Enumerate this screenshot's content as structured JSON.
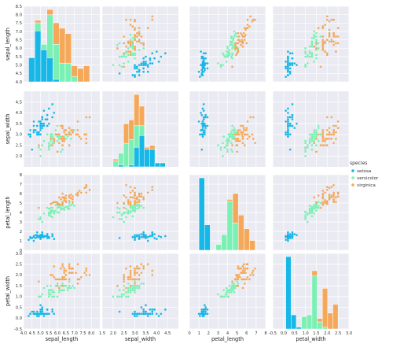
{
  "chart_data": {
    "type": "scatter",
    "subtype": "pairplot",
    "variables": [
      "sepal_length",
      "sepal_width",
      "petal_length",
      "petal_width"
    ],
    "axes": {
      "sepal_length": {
        "label": "sepal_length",
        "lim": [
          4.0,
          8.5
        ],
        "ticks": [
          4.0,
          4.5,
          5.0,
          5.5,
          6.0,
          6.5,
          7.0,
          7.5,
          8.0,
          8.5
        ],
        "xticks": [
          4.0,
          4.5,
          5.0,
          5.5,
          6.0,
          6.5,
          7.0,
          7.5,
          8.0
        ]
      },
      "sepal_width": {
        "label": "sepal_width",
        "lim": [
          1.5,
          5.0
        ],
        "ticks": [
          2.0,
          2.5,
          3.0,
          3.5,
          4.0,
          4.5
        ],
        "xticks": [
          1.5,
          2.0,
          2.5,
          3.0,
          3.5,
          4.0,
          4.5
        ]
      },
      "petal_length": {
        "label": "petal_length",
        "lim": [
          0,
          8
        ],
        "ticks": [
          0,
          1,
          2,
          3,
          4,
          5,
          6,
          7,
          8
        ],
        "xticks": [
          0,
          1,
          2,
          3,
          4,
          5,
          6,
          7,
          8
        ]
      },
      "petal_width": {
        "label": "petal_width",
        "lim": [
          -0.5,
          3.0
        ],
        "ticks": [
          -0.5,
          0.0,
          0.5,
          1.0,
          1.5,
          2.0,
          2.5,
          3.0
        ],
        "xticks": [
          -0.5,
          0.0,
          0.5,
          1.0,
          1.5,
          2.0,
          2.5,
          3.0
        ]
      }
    },
    "series": [
      {
        "name": "setosa",
        "color": "#17b7e8",
        "points": [
          [
            5.1,
            3.5,
            1.4,
            0.2
          ],
          [
            4.9,
            3.0,
            1.4,
            0.2
          ],
          [
            4.7,
            3.2,
            1.3,
            0.2
          ],
          [
            4.6,
            3.1,
            1.5,
            0.2
          ],
          [
            5.0,
            3.6,
            1.4,
            0.2
          ],
          [
            5.4,
            3.9,
            1.7,
            0.4
          ],
          [
            4.6,
            3.4,
            1.4,
            0.3
          ],
          [
            5.0,
            3.4,
            1.5,
            0.2
          ],
          [
            4.4,
            2.9,
            1.4,
            0.2
          ],
          [
            4.9,
            3.1,
            1.5,
            0.1
          ],
          [
            5.4,
            3.7,
            1.5,
            0.2
          ],
          [
            4.8,
            3.4,
            1.6,
            0.2
          ],
          [
            4.8,
            3.0,
            1.4,
            0.1
          ],
          [
            4.3,
            3.0,
            1.1,
            0.1
          ],
          [
            5.8,
            4.0,
            1.2,
            0.2
          ],
          [
            5.7,
            4.4,
            1.5,
            0.4
          ],
          [
            5.4,
            3.9,
            1.3,
            0.4
          ],
          [
            5.1,
            3.5,
            1.4,
            0.3
          ],
          [
            5.7,
            3.8,
            1.7,
            0.3
          ],
          [
            5.1,
            3.8,
            1.5,
            0.3
          ],
          [
            5.4,
            3.4,
            1.7,
            0.2
          ],
          [
            5.1,
            3.7,
            1.5,
            0.4
          ],
          [
            4.6,
            3.6,
            1.0,
            0.2
          ],
          [
            5.1,
            3.3,
            1.7,
            0.5
          ],
          [
            4.8,
            3.4,
            1.9,
            0.2
          ],
          [
            5.0,
            3.0,
            1.6,
            0.2
          ],
          [
            5.0,
            3.4,
            1.6,
            0.4
          ],
          [
            5.2,
            3.5,
            1.5,
            0.2
          ],
          [
            5.2,
            3.4,
            1.4,
            0.2
          ],
          [
            4.7,
            3.2,
            1.6,
            0.2
          ],
          [
            4.8,
            3.1,
            1.6,
            0.2
          ],
          [
            5.4,
            3.4,
            1.5,
            0.4
          ],
          [
            5.2,
            4.1,
            1.5,
            0.1
          ],
          [
            5.5,
            4.2,
            1.4,
            0.2
          ],
          [
            4.9,
            3.1,
            1.5,
            0.2
          ],
          [
            5.0,
            3.2,
            1.2,
            0.2
          ],
          [
            5.5,
            3.5,
            1.3,
            0.2
          ],
          [
            4.9,
            3.6,
            1.4,
            0.1
          ],
          [
            4.4,
            3.0,
            1.3,
            0.2
          ],
          [
            5.1,
            3.4,
            1.5,
            0.2
          ],
          [
            5.0,
            3.5,
            1.3,
            0.3
          ],
          [
            4.5,
            2.3,
            1.3,
            0.3
          ],
          [
            4.4,
            3.2,
            1.3,
            0.2
          ],
          [
            5.0,
            3.5,
            1.6,
            0.6
          ],
          [
            5.1,
            3.8,
            1.9,
            0.4
          ],
          [
            4.8,
            3.0,
            1.4,
            0.3
          ],
          [
            5.1,
            3.8,
            1.6,
            0.2
          ],
          [
            4.6,
            3.2,
            1.4,
            0.2
          ],
          [
            5.3,
            3.7,
            1.5,
            0.2
          ],
          [
            5.0,
            3.3,
            1.4,
            0.2
          ]
        ]
      },
      {
        "name": "versicolor",
        "color": "#7cf0b4",
        "points": [
          [
            7.0,
            3.2,
            4.7,
            1.4
          ],
          [
            6.4,
            3.2,
            4.5,
            1.5
          ],
          [
            6.9,
            3.1,
            4.9,
            1.5
          ],
          [
            5.5,
            2.3,
            4.0,
            1.3
          ],
          [
            6.5,
            2.8,
            4.6,
            1.5
          ],
          [
            5.7,
            2.8,
            4.5,
            1.3
          ],
          [
            6.3,
            3.3,
            4.7,
            1.6
          ],
          [
            4.9,
            2.4,
            3.3,
            1.0
          ],
          [
            6.6,
            2.9,
            4.6,
            1.3
          ],
          [
            5.2,
            2.7,
            3.9,
            1.4
          ],
          [
            5.0,
            2.0,
            3.5,
            1.0
          ],
          [
            5.9,
            3.0,
            4.2,
            1.5
          ],
          [
            6.0,
            2.2,
            4.0,
            1.0
          ],
          [
            6.1,
            2.9,
            4.7,
            1.4
          ],
          [
            5.6,
            2.9,
            3.6,
            1.3
          ],
          [
            6.7,
            3.1,
            4.4,
            1.4
          ],
          [
            5.6,
            3.0,
            4.5,
            1.5
          ],
          [
            5.8,
            2.7,
            4.1,
            1.0
          ],
          [
            6.2,
            2.2,
            4.5,
            1.5
          ],
          [
            5.6,
            2.5,
            3.9,
            1.1
          ],
          [
            5.9,
            3.2,
            4.8,
            1.8
          ],
          [
            6.1,
            2.8,
            4.0,
            1.3
          ],
          [
            6.3,
            2.5,
            4.9,
            1.5
          ],
          [
            6.1,
            2.8,
            4.7,
            1.2
          ],
          [
            6.4,
            2.9,
            4.3,
            1.3
          ],
          [
            6.6,
            3.0,
            4.4,
            1.4
          ],
          [
            6.8,
            2.8,
            4.8,
            1.4
          ],
          [
            6.7,
            3.0,
            5.0,
            1.7
          ],
          [
            6.0,
            2.9,
            4.5,
            1.5
          ],
          [
            5.7,
            2.6,
            3.5,
            1.0
          ],
          [
            5.5,
            2.4,
            3.8,
            1.1
          ],
          [
            5.5,
            2.4,
            3.7,
            1.0
          ],
          [
            5.8,
            2.7,
            3.9,
            1.2
          ],
          [
            6.0,
            2.7,
            5.1,
            1.6
          ],
          [
            5.4,
            3.0,
            4.5,
            1.5
          ],
          [
            6.0,
            3.4,
            4.5,
            1.6
          ],
          [
            6.7,
            3.1,
            4.7,
            1.5
          ],
          [
            6.3,
            2.3,
            4.4,
            1.3
          ],
          [
            5.6,
            3.0,
            4.1,
            1.3
          ],
          [
            5.5,
            2.5,
            4.0,
            1.3
          ],
          [
            5.5,
            2.6,
            4.4,
            1.2
          ],
          [
            6.1,
            3.0,
            4.6,
            1.4
          ],
          [
            5.8,
            2.6,
            4.0,
            1.2
          ],
          [
            5.0,
            2.3,
            3.3,
            1.0
          ],
          [
            5.6,
            2.7,
            4.2,
            1.3
          ],
          [
            5.7,
            3.0,
            4.2,
            1.2
          ],
          [
            5.7,
            2.9,
            4.2,
            1.3
          ],
          [
            6.2,
            2.9,
            4.3,
            1.3
          ],
          [
            5.1,
            2.5,
            3.0,
            1.1
          ],
          [
            5.7,
            2.8,
            4.1,
            1.3
          ]
        ]
      },
      {
        "name": "virginica",
        "color": "#f5a85a",
        "points": [
          [
            6.3,
            3.3,
            6.0,
            2.5
          ],
          [
            5.8,
            2.7,
            5.1,
            1.9
          ],
          [
            7.1,
            3.0,
            5.9,
            2.1
          ],
          [
            6.3,
            2.9,
            5.6,
            1.8
          ],
          [
            6.5,
            3.0,
            5.8,
            2.2
          ],
          [
            7.6,
            3.0,
            6.6,
            2.1
          ],
          [
            4.9,
            2.5,
            4.5,
            1.7
          ],
          [
            7.3,
            2.9,
            6.3,
            1.8
          ],
          [
            6.7,
            2.5,
            5.8,
            1.8
          ],
          [
            7.2,
            3.6,
            6.1,
            2.5
          ],
          [
            6.5,
            3.2,
            5.1,
            2.0
          ],
          [
            6.4,
            2.7,
            5.3,
            1.9
          ],
          [
            6.8,
            3.0,
            5.5,
            2.1
          ],
          [
            5.7,
            2.5,
            5.0,
            2.0
          ],
          [
            5.8,
            2.8,
            5.1,
            2.4
          ],
          [
            6.4,
            3.2,
            5.3,
            2.3
          ],
          [
            6.5,
            3.0,
            5.5,
            1.8
          ],
          [
            7.7,
            3.8,
            6.7,
            2.2
          ],
          [
            7.7,
            2.6,
            6.9,
            2.3
          ],
          [
            6.0,
            2.2,
            5.0,
            1.5
          ],
          [
            6.9,
            3.2,
            5.7,
            2.3
          ],
          [
            5.6,
            2.8,
            4.9,
            2.0
          ],
          [
            7.7,
            2.8,
            6.7,
            2.0
          ],
          [
            6.3,
            2.7,
            4.9,
            1.8
          ],
          [
            6.7,
            3.3,
            5.7,
            2.1
          ],
          [
            7.2,
            3.2,
            6.0,
            1.8
          ],
          [
            6.2,
            2.8,
            4.8,
            1.8
          ],
          [
            6.1,
            3.0,
            4.9,
            1.8
          ],
          [
            6.4,
            2.8,
            5.6,
            2.1
          ],
          [
            7.2,
            3.0,
            5.8,
            1.6
          ],
          [
            7.4,
            2.8,
            6.1,
            1.9
          ],
          [
            7.9,
            3.8,
            6.4,
            2.0
          ],
          [
            6.4,
            2.8,
            5.6,
            2.2
          ],
          [
            6.3,
            2.8,
            5.1,
            1.5
          ],
          [
            6.1,
            2.6,
            5.6,
            1.4
          ],
          [
            7.7,
            3.0,
            6.1,
            2.3
          ],
          [
            6.3,
            3.4,
            5.6,
            2.4
          ],
          [
            6.4,
            3.1,
            5.5,
            1.8
          ],
          [
            6.0,
            3.0,
            4.8,
            1.8
          ],
          [
            6.9,
            3.1,
            5.4,
            2.1
          ],
          [
            6.7,
            3.1,
            5.6,
            2.4
          ],
          [
            6.9,
            3.1,
            5.1,
            2.3
          ],
          [
            5.8,
            2.7,
            5.1,
            1.9
          ],
          [
            6.8,
            3.2,
            5.9,
            2.3
          ],
          [
            6.7,
            3.3,
            5.7,
            2.5
          ],
          [
            6.7,
            3.0,
            5.2,
            2.3
          ],
          [
            6.3,
            2.5,
            5.0,
            1.9
          ],
          [
            6.5,
            3.0,
            5.2,
            2.0
          ],
          [
            6.2,
            3.4,
            5.4,
            2.3
          ],
          [
            5.9,
            3.0,
            5.1,
            1.8
          ]
        ]
      }
    ],
    "diagonal": "stacked-histogram",
    "grid": true,
    "legend": {
      "title": "species",
      "placement": "right"
    },
    "colors": {
      "panel_background": "#eaeaf2",
      "grid": "#ffffff"
    }
  }
}
